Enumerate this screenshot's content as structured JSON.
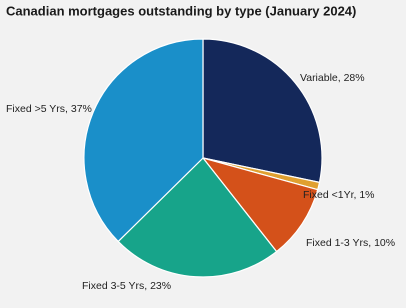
{
  "chart_data": {
    "type": "pie",
    "title": "Canadian mortgages outstanding by type (January 2024)",
    "labels": [
      "Variable, 28%",
      "Fixed <1Yr, 1%",
      "Fixed 1-3 Yrs, 10%",
      "Fixed 3-5 Yrs, 23%",
      "Fixed >5 Yrs, 37%"
    ],
    "values": [
      28,
      1,
      10,
      23,
      37
    ],
    "colors": [
      "#14285a",
      "#e0a030",
      "#d4511a",
      "#17a48a",
      "#1a8fc9"
    ]
  }
}
